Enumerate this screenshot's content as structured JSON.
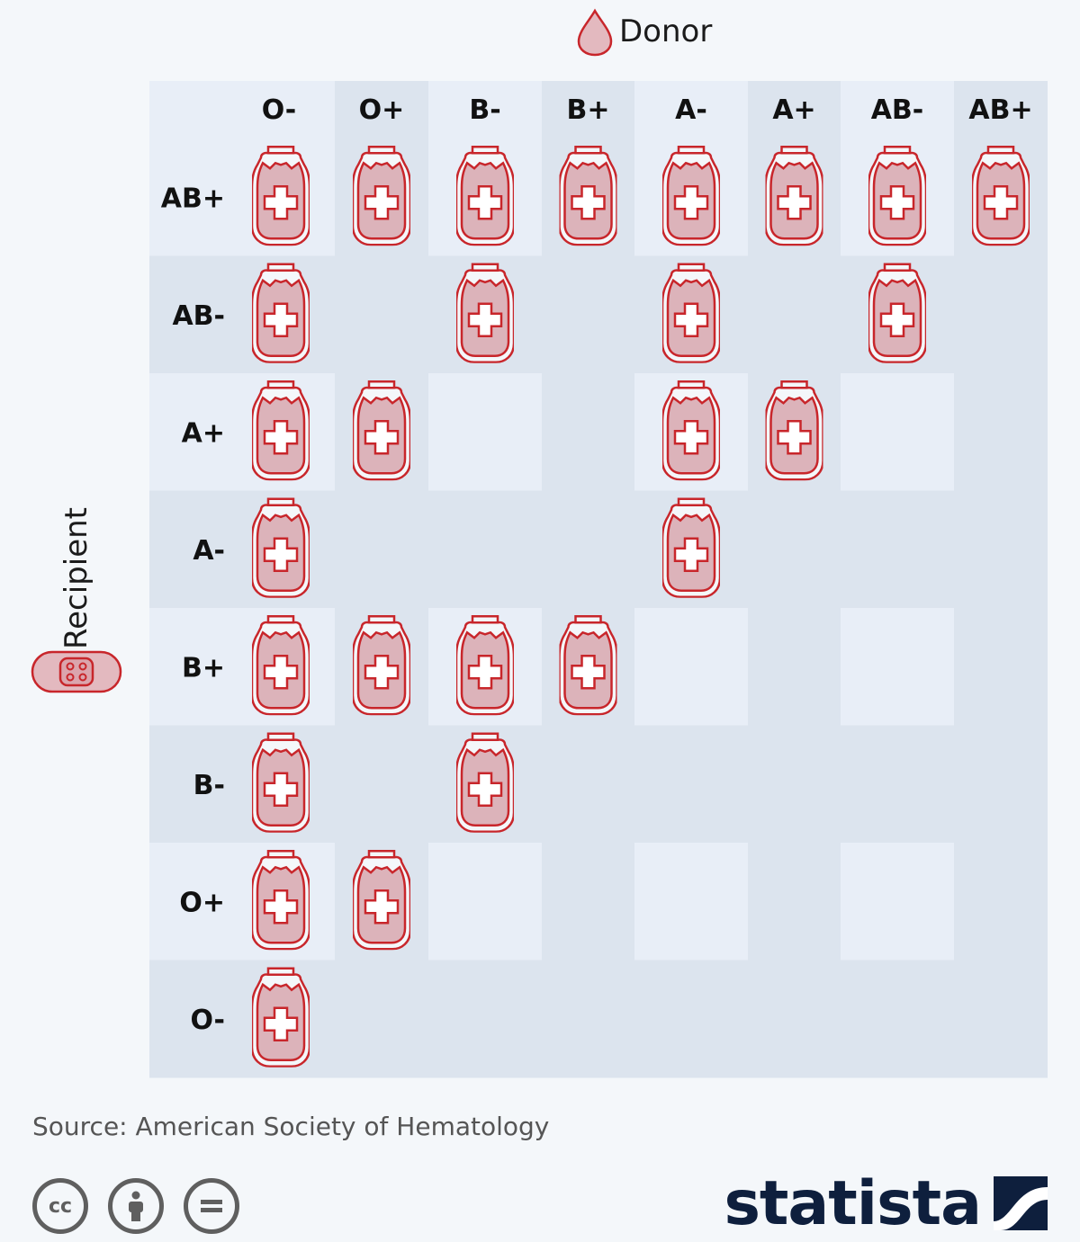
{
  "chart_data": {
    "type": "table",
    "title": "",
    "xlabel": "Donor",
    "ylabel": "Recipient",
    "donor_types": [
      "O-",
      "O+",
      "B-",
      "B+",
      "A-",
      "A+",
      "AB-",
      "AB+"
    ],
    "recipient_types": [
      "AB+",
      "AB-",
      "A+",
      "A-",
      "B+",
      "B-",
      "O+",
      "O-"
    ],
    "compatible": [
      [
        1,
        1,
        1,
        1,
        1,
        1,
        1,
        1
      ],
      [
        1,
        0,
        1,
        0,
        1,
        0,
        1,
        0
      ],
      [
        1,
        1,
        0,
        0,
        1,
        1,
        0,
        0
      ],
      [
        1,
        0,
        0,
        0,
        1,
        0,
        0,
        0
      ],
      [
        1,
        1,
        1,
        1,
        0,
        0,
        0,
        0
      ],
      [
        1,
        0,
        1,
        0,
        0,
        0,
        0,
        0
      ],
      [
        1,
        1,
        0,
        0,
        0,
        0,
        0,
        0
      ],
      [
        1,
        0,
        0,
        0,
        0,
        0,
        0,
        0
      ]
    ]
  },
  "colors": {
    "accent": "#c8262b",
    "bag_fill": "#dcb3ba",
    "cell_light": "#e8eef7",
    "cell_dark": "#dce4ee"
  },
  "icons": {
    "donor": "blood-drop-icon",
    "recipient": "bandage-icon",
    "mark": "blood-bag-icon"
  },
  "footer": {
    "source": "Source: American Society of Hematology",
    "brand": "statista",
    "license_icons": [
      "cc-icon",
      "attribution-icon",
      "no-derivatives-icon"
    ]
  }
}
